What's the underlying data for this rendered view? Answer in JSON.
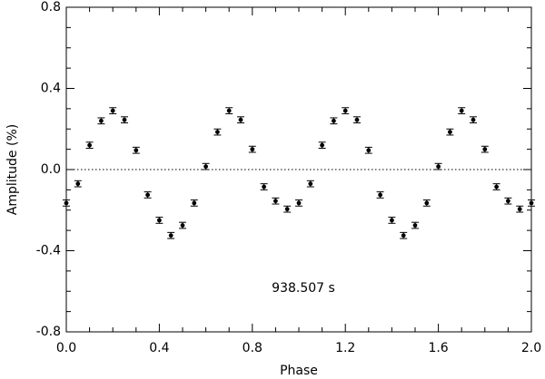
{
  "chart_data": {
    "type": "scatter",
    "x_label": "Phase",
    "y_label": "Amplitude (%)",
    "annotation": "938.507 s",
    "x": [
      0.0,
      0.05,
      0.1,
      0.15,
      0.2,
      0.25,
      0.3,
      0.35,
      0.4,
      0.45,
      0.5,
      0.55,
      0.6,
      0.65,
      0.7,
      0.75,
      0.8,
      0.85,
      0.9,
      0.95,
      1.0,
      1.05,
      1.1,
      1.15,
      1.2,
      1.25,
      1.3,
      1.35,
      1.4,
      1.45,
      1.5,
      1.55,
      1.6,
      1.65,
      1.7,
      1.75,
      1.8,
      1.85,
      1.9,
      1.95,
      2.0
    ],
    "values": [
      -0.165,
      -0.07,
      0.12,
      0.24,
      0.29,
      0.245,
      0.095,
      -0.125,
      -0.25,
      -0.325,
      -0.275,
      -0.165,
      0.015,
      0.185,
      0.29,
      0.245,
      0.1,
      -0.085,
      -0.155,
      -0.195,
      -0.165,
      -0.07,
      0.12,
      0.24,
      0.29,
      0.245,
      0.095,
      -0.125,
      -0.25,
      -0.325,
      -0.275,
      -0.165,
      0.015,
      0.185,
      0.29,
      0.245,
      0.1,
      -0.085,
      -0.155,
      -0.195,
      -0.165
    ],
    "errors": [
      0.015,
      0.015,
      0.015,
      0.015,
      0.015,
      0.015,
      0.015,
      0.015,
      0.015,
      0.015,
      0.015,
      0.015,
      0.015,
      0.015,
      0.015,
      0.015,
      0.015,
      0.015,
      0.015,
      0.015,
      0.015,
      0.015,
      0.015,
      0.015,
      0.015,
      0.015,
      0.015,
      0.015,
      0.015,
      0.015,
      0.015,
      0.015,
      0.015,
      0.015,
      0.015,
      0.015,
      0.015,
      0.015,
      0.015,
      0.015,
      0.015
    ],
    "color": "#000000",
    "xlim": [
      0,
      2
    ],
    "ylim": [
      -0.8,
      0.8
    ],
    "xticks": [
      {
        "value": 0,
        "label": "0.0"
      },
      0.4,
      0.8,
      1.2,
      1.6,
      {
        "value": 2,
        "label": "2.0"
      }
    ],
    "yticks": [
      -0.8,
      -0.4,
      {
        "value": 0,
        "label": "0.0"
      },
      0.4,
      0.8
    ],
    "xminorticks": [
      0.1,
      0.2,
      0.3,
      0.5,
      0.6,
      0.7,
      0.9,
      1.0,
      1.1,
      1.3,
      1.4,
      1.5,
      1.7,
      1.8,
      1.9
    ],
    "yminorticks": [
      -0.7,
      -0.6,
      -0.5,
      -0.3,
      -0.2,
      -0.1,
      0.1,
      0.2,
      0.3,
      0.5,
      0.6,
      0.7
    ],
    "hline": 0
  }
}
